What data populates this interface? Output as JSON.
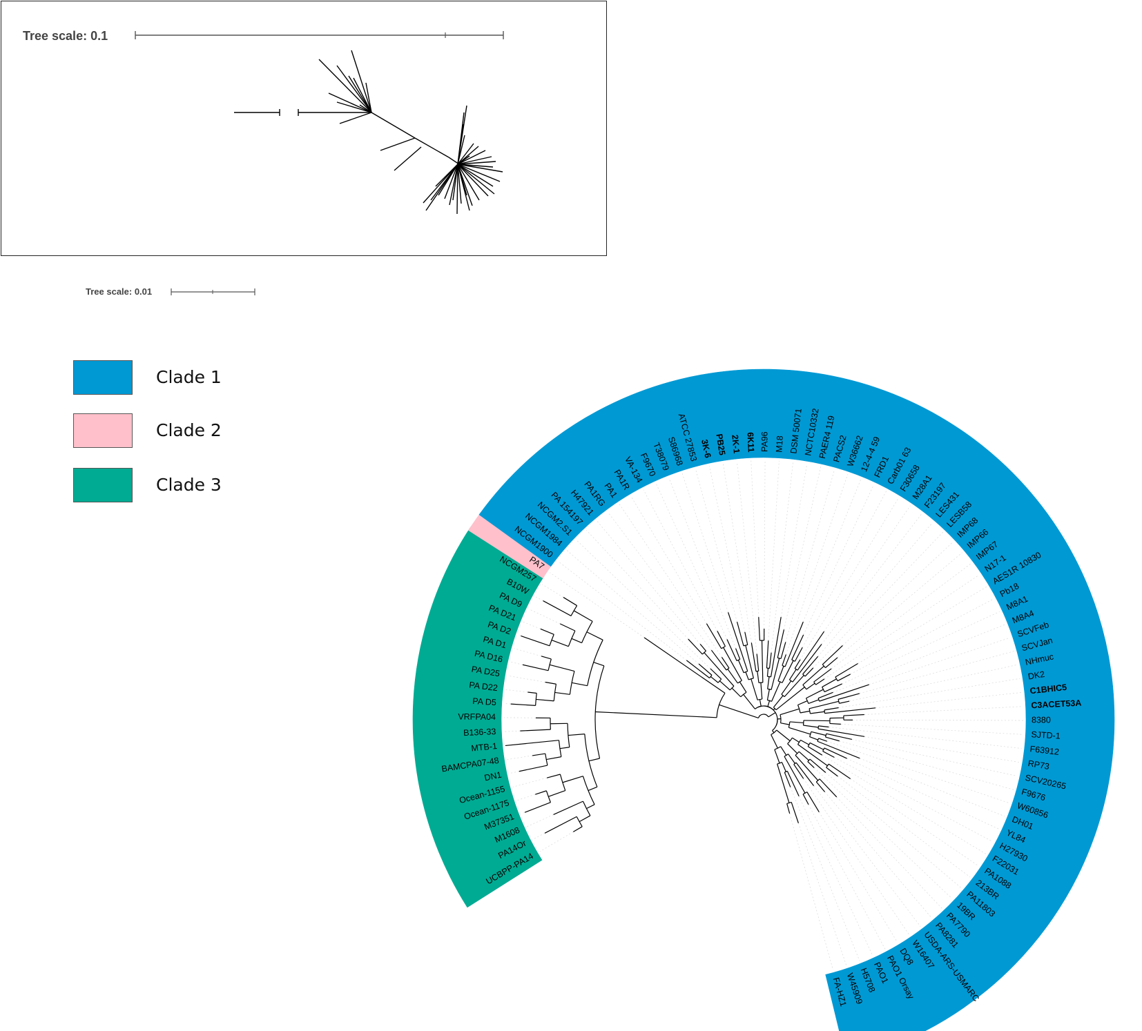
{
  "inset": {
    "scale_label": "Tree scale: 0.1"
  },
  "main_tree": {
    "scale_label": "Tree scale: 0.01"
  },
  "legend": [
    {
      "label": "Clade 1",
      "color": "#0099d4"
    },
    {
      "label": "Clade 2",
      "color": "#ffc0cb"
    },
    {
      "label": "Clade 3",
      "color": "#00ab93"
    }
  ],
  "leaves": [
    {
      "name": "UCBPP-PA14",
      "clade": 3
    },
    {
      "name": "PA14Or",
      "clade": 3
    },
    {
      "name": "M1608",
      "clade": 3
    },
    {
      "name": "M37351",
      "clade": 3
    },
    {
      "name": "Ocean-1175",
      "clade": 3
    },
    {
      "name": "Ocean-1155",
      "clade": 3
    },
    {
      "name": "DN1",
      "clade": 3
    },
    {
      "name": "BAMCPA07-48",
      "clade": 3
    },
    {
      "name": "MTB-1",
      "clade": 3
    },
    {
      "name": "B136-33",
      "clade": 3
    },
    {
      "name": "VRFPA04",
      "clade": 3
    },
    {
      "name": "PA D5",
      "clade": 3
    },
    {
      "name": "PA D22",
      "clade": 3
    },
    {
      "name": "PA D25",
      "clade": 3
    },
    {
      "name": "PA D16",
      "clade": 3
    },
    {
      "name": "PA D1",
      "clade": 3
    },
    {
      "name": "PA D2",
      "clade": 3
    },
    {
      "name": "PA D21",
      "clade": 3
    },
    {
      "name": "PA D9",
      "clade": 3
    },
    {
      "name": "B10W",
      "clade": 3
    },
    {
      "name": "NCGM257",
      "clade": 3
    },
    {
      "name": "PA7",
      "clade": 2
    },
    {
      "name": "NCGM1900",
      "clade": 1
    },
    {
      "name": "NCGM1984",
      "clade": 1
    },
    {
      "name": "NCGM2.S1",
      "clade": 1
    },
    {
      "name": "PA 154197",
      "clade": 1
    },
    {
      "name": "H47921",
      "clade": 1
    },
    {
      "name": "PA1RG",
      "clade": 1
    },
    {
      "name": "PA1",
      "clade": 1
    },
    {
      "name": "PA1R",
      "clade": 1
    },
    {
      "name": "VA-134",
      "clade": 1
    },
    {
      "name": "F9670",
      "clade": 1
    },
    {
      "name": "T38079",
      "clade": 1
    },
    {
      "name": "S86968",
      "clade": 1
    },
    {
      "name": "ATCC 27853",
      "clade": 1
    },
    {
      "name": "3K-6",
      "clade": 1,
      "bold": true
    },
    {
      "name": "PB25",
      "clade": 1,
      "bold": true
    },
    {
      "name": "2K-1",
      "clade": 1,
      "bold": true
    },
    {
      "name": "6K11",
      "clade": 1,
      "bold": true
    },
    {
      "name": "PA96",
      "clade": 1
    },
    {
      "name": "M18",
      "clade": 1
    },
    {
      "name": "DSM 50071",
      "clade": 1
    },
    {
      "name": "NCTC10332",
      "clade": 1
    },
    {
      "name": "PAER4 119",
      "clade": 1
    },
    {
      "name": "PACS2",
      "clade": 1
    },
    {
      "name": "W36662",
      "clade": 1
    },
    {
      "name": "12-4-4 59",
      "clade": 1
    },
    {
      "name": "FRD1",
      "clade": 1
    },
    {
      "name": "Carb01 63",
      "clade": 1
    },
    {
      "name": "F30658",
      "clade": 1
    },
    {
      "name": "M28A1",
      "clade": 1
    },
    {
      "name": "F23197",
      "clade": 1
    },
    {
      "name": "LES431",
      "clade": 1
    },
    {
      "name": "LESB58",
      "clade": 1
    },
    {
      "name": "IMP68",
      "clade": 1
    },
    {
      "name": "IMP66",
      "clade": 1
    },
    {
      "name": "IMP67",
      "clade": 1
    },
    {
      "name": "N17-1",
      "clade": 1
    },
    {
      "name": "AES1R 10830",
      "clade": 1
    },
    {
      "name": "Pb18",
      "clade": 1
    },
    {
      "name": "M8A1",
      "clade": 1
    },
    {
      "name": "M8A4",
      "clade": 1
    },
    {
      "name": "SCVFeb",
      "clade": 1
    },
    {
      "name": "SCVJan",
      "clade": 1
    },
    {
      "name": "NHmuc",
      "clade": 1
    },
    {
      "name": "DK2",
      "clade": 1
    },
    {
      "name": "C1BHIC5",
      "clade": 1,
      "bold": true
    },
    {
      "name": "C3ACET53A",
      "clade": 1,
      "bold": true
    },
    {
      "name": "8380",
      "clade": 1
    },
    {
      "name": "SJTD-1",
      "clade": 1
    },
    {
      "name": "F63912",
      "clade": 1
    },
    {
      "name": "RP73",
      "clade": 1
    },
    {
      "name": "SCV20265",
      "clade": 1
    },
    {
      "name": "F9676",
      "clade": 1
    },
    {
      "name": "W60856",
      "clade": 1
    },
    {
      "name": "DH01",
      "clade": 1
    },
    {
      "name": "YL84",
      "clade": 1
    },
    {
      "name": "H27930",
      "clade": 1
    },
    {
      "name": "F22031",
      "clade": 1
    },
    {
      "name": "PA1088",
      "clade": 1
    },
    {
      "name": "213BR",
      "clade": 1
    },
    {
      "name": "PA11803",
      "clade": 1
    },
    {
      "name": "19BR",
      "clade": 1
    },
    {
      "name": "PA7790",
      "clade": 1
    },
    {
      "name": "PA8281",
      "clade": 1
    },
    {
      "name": "USDA-ARS-USMARC",
      "clade": 1
    },
    {
      "name": "W16407",
      "clade": 1
    },
    {
      "name": "DQ8",
      "clade": 1
    },
    {
      "name": "PAO1 Orsay",
      "clade": 1
    },
    {
      "name": "PAO1",
      "clade": 1
    },
    {
      "name": "H5708",
      "clade": 1
    },
    {
      "name": "W45909",
      "clade": 1
    },
    {
      "name": "FA-HZ1",
      "clade": 1
    }
  ]
}
